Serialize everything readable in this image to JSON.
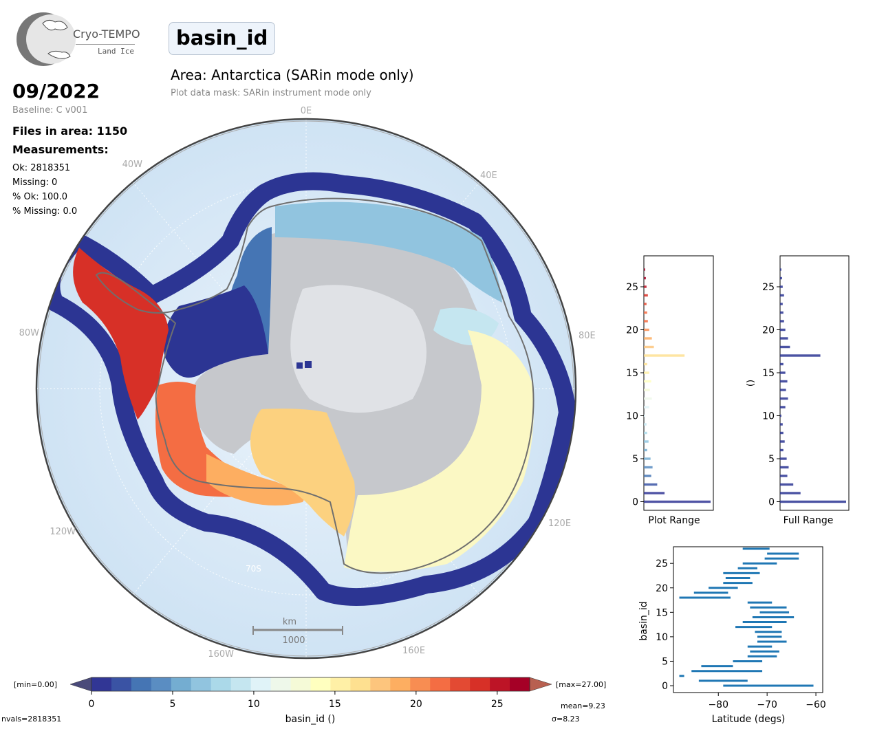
{
  "logo": {
    "name": "Cryo-TEMPO",
    "sub": "Land Ice"
  },
  "header": {
    "title": "basin_id",
    "area": "Area: Antarctica (SARin mode only)",
    "mask": "Plot data mask: SARin instrument mode only"
  },
  "info": {
    "date": "09/2022",
    "baseline": "Baseline: C v001",
    "files": "Files in area: 1150",
    "measurements_heading": "Measurements:",
    "ok": "Ok: 2818351",
    "missing": "Missing: 0",
    "pct_ok": "% Ok: 100.0",
    "pct_missing": "% Missing: 0.0"
  },
  "map": {
    "lon_labels": [
      "0E",
      "40E",
      "80E",
      "120E",
      "160E",
      "160W",
      "120W",
      "80W",
      "40W"
    ],
    "lat_label": "70S",
    "scale_unit": "km",
    "scale_value": "1000"
  },
  "colorbar": {
    "min_label": "[min=0.00]",
    "max_label": "[max=27.00]",
    "ticks": [
      "0",
      "5",
      "10",
      "15",
      "20",
      "25"
    ],
    "label": "basin_id ()",
    "nvals": "nvals=2818351",
    "mean": "mean=9.23",
    "sigma": "σ=8.23",
    "colors": [
      "#313695",
      "#3a53a4",
      "#4575b4",
      "#5a8dc2",
      "#74add1",
      "#91c4df",
      "#abd9e9",
      "#c5e6f0",
      "#e0f3f8",
      "#eef8ea",
      "#f5fad7",
      "#ffffbf",
      "#fff0a6",
      "#fee090",
      "#fdc57d",
      "#fdae61",
      "#f88d52",
      "#f46d43",
      "#e34a33",
      "#d73027",
      "#bd1426",
      "#a50026"
    ]
  },
  "hist_plot": {
    "xlabel": "Plot Range",
    "ylabel": "",
    "yticks": [
      "0",
      "5",
      "10",
      "15",
      "20",
      "25"
    ],
    "bars": [
      1.0,
      0.31,
      0.2,
      0.11,
      0.13,
      0.1,
      0.05,
      0.07,
      0.05,
      0.04,
      0.02,
      0.08,
      0.12,
      0.09,
      0.11,
      0.08,
      0.05,
      0.61,
      0.15,
      0.12,
      0.08,
      0.06,
      0.05,
      0.04,
      0.06,
      0.04,
      0.03,
      0.02
    ]
  },
  "hist_full": {
    "xlabel": "Full Range",
    "ylabel": "()",
    "yticks": [
      "0",
      "5",
      "10",
      "15",
      "20",
      "25"
    ],
    "bars": [
      1.0,
      0.31,
      0.2,
      0.11,
      0.13,
      0.1,
      0.05,
      0.07,
      0.05,
      0.04,
      0.02,
      0.08,
      0.12,
      0.09,
      0.11,
      0.08,
      0.05,
      0.61,
      0.15,
      0.12,
      0.08,
      0.06,
      0.05,
      0.04,
      0.06,
      0.04,
      0.03,
      0.02
    ]
  },
  "lat_plot": {
    "xlabel": "Latitude (degs)",
    "ylabel": "basin_id",
    "xticks": [
      "−80",
      "−70",
      "−60"
    ],
    "yticks": [
      "0",
      "5",
      "10",
      "15",
      "20",
      "25"
    ],
    "ranges": [
      [
        -79,
        -60.5
      ],
      [
        -84,
        -74
      ],
      [
        -88,
        -87
      ],
      [
        -85.5,
        -71
      ],
      [
        -83.5,
        -77
      ],
      [
        -77,
        -71
      ],
      [
        -74,
        -68
      ],
      [
        -73.5,
        -67.5
      ],
      [
        -74,
        -69
      ],
      [
        -72,
        -66
      ],
      [
        -72,
        -67
      ],
      [
        -72.5,
        -67
      ],
      [
        -76.5,
        -69
      ],
      [
        -75,
        -66
      ],
      [
        -73,
        -64.5
      ],
      [
        -71.5,
        -65.5
      ],
      [
        -73.5,
        -66
      ],
      [
        -74,
        -69
      ],
      [
        -88,
        -77.5
      ],
      [
        -85,
        -78
      ],
      [
        -82,
        -76
      ],
      [
        -79,
        -73
      ],
      [
        -78.5,
        -73.5
      ],
      [
        -79,
        -71.5
      ],
      [
        -76,
        -72
      ],
      [
        -75,
        -68
      ],
      [
        -70.5,
        -63.5
      ],
      [
        -70,
        -63.5
      ],
      [
        -75,
        -69.5
      ]
    ]
  }
}
